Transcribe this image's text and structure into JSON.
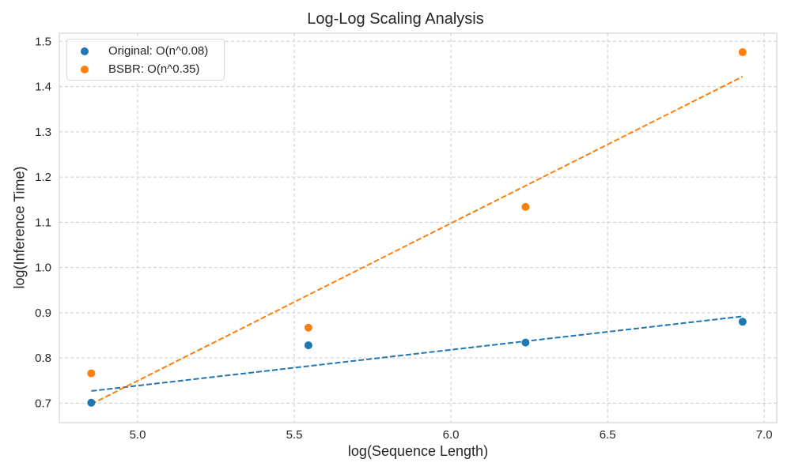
{
  "chart_data": {
    "type": "scatter",
    "title": "Log-Log Scaling Analysis",
    "xlabel": "log(Sequence Length)",
    "ylabel": "log(Inference Time)",
    "xlim": [
      4.75,
      7.04
    ],
    "ylim": [
      0.657,
      1.518
    ],
    "xticks": [
      5.0,
      5.5,
      6.0,
      6.5,
      7.0
    ],
    "yticks": [
      0.7,
      0.8,
      0.9,
      1.0,
      1.1,
      1.2,
      1.3,
      1.4,
      1.5
    ],
    "grid": true,
    "legend_position": "top-left",
    "series": [
      {
        "name": "Original: O(n^0.08)",
        "color": "#1f77b4",
        "x": [
          4.852,
          5.545,
          6.238,
          6.931
        ],
        "y": [
          0.701,
          0.828,
          0.834,
          0.88
        ],
        "fit": {
          "x": [
            4.852,
            6.931
          ],
          "y": [
            0.727,
            0.892
          ]
        }
      },
      {
        "name": "BSBR: O(n^0.35)",
        "color": "#ff7f0e",
        "x": [
          4.852,
          5.545,
          6.238,
          6.931
        ],
        "y": [
          0.766,
          0.867,
          1.134,
          1.476
        ],
        "fit": {
          "x": [
            4.852,
            6.931
          ],
          "y": [
            0.698,
            1.422
          ]
        }
      }
    ]
  }
}
